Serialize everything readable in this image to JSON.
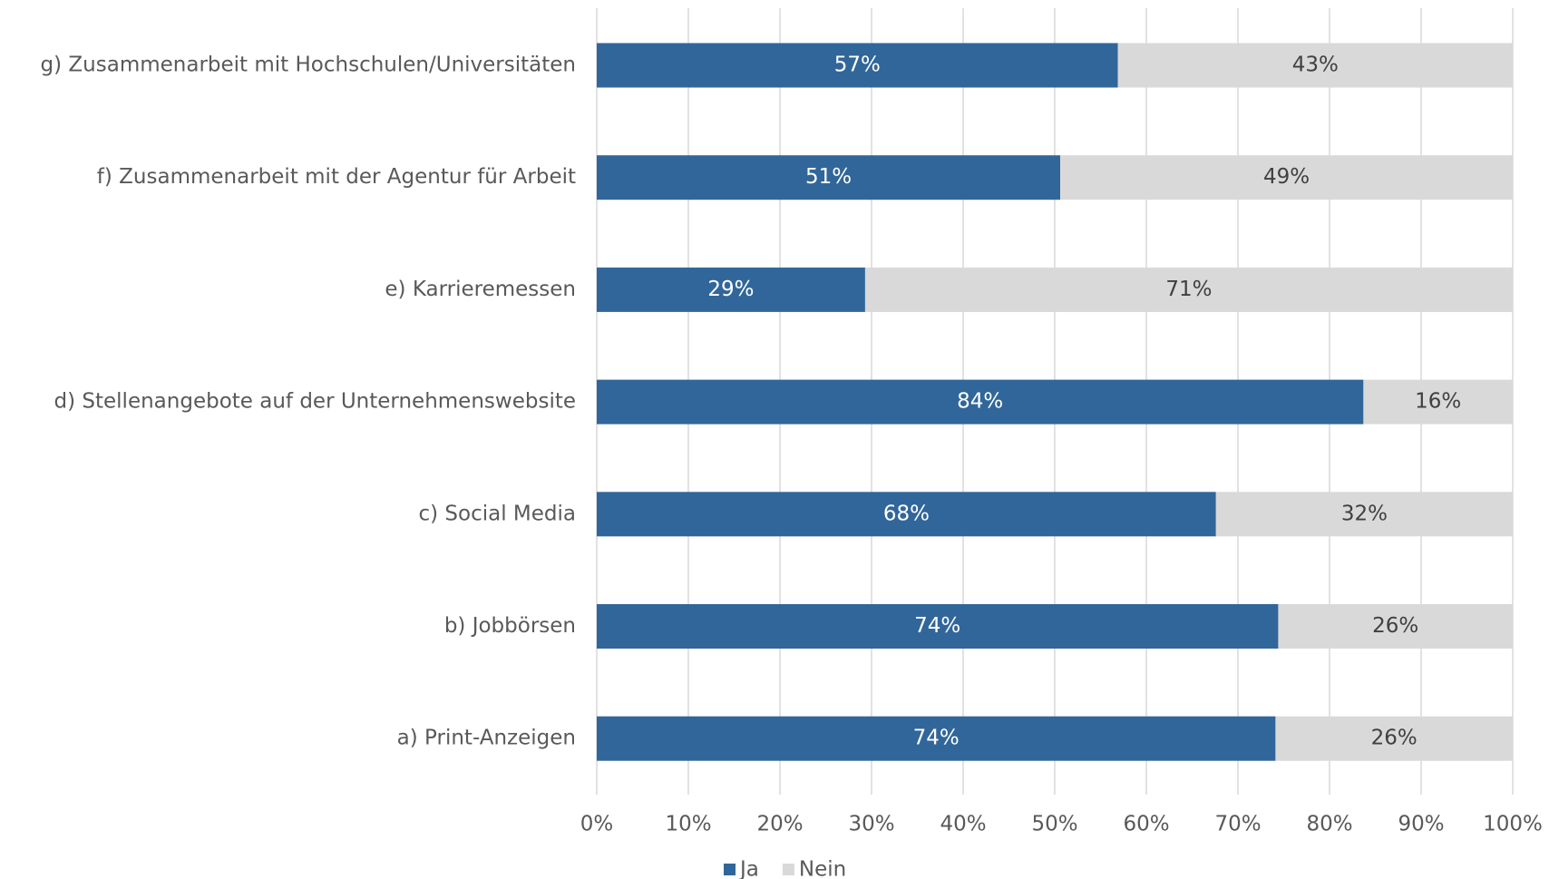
{
  "chart_data": {
    "type": "stacked_bar_horizontal",
    "categories": [
      "g) Zusammenarbeit mit Hochschulen/Universitäten",
      "f) Zusammenarbeit mit der Agentur für Arbeit",
      "e) Karrieremessen",
      "d) Stellenangebote auf der Unternehmenswebsite",
      "c) Social Media",
      "b) Jobbörsen",
      "a) Print-Anzeigen"
    ],
    "series": [
      {
        "name": "Ja",
        "color": "#31669a",
        "values": [
          56.9,
          50.6,
          29.3,
          83.7,
          67.6,
          74.4,
          74.1
        ],
        "value_labels": [
          "57%",
          "51%",
          "29%",
          "84%",
          "68%",
          "74%",
          "74%"
        ]
      },
      {
        "name": "Nein",
        "color": "#d9d9d9",
        "values": [
          43.1,
          49.4,
          70.7,
          16.3,
          32.4,
          25.6,
          25.9
        ],
        "value_labels": [
          "43%",
          "49%",
          "71%",
          "16%",
          "32%",
          "26%",
          "26%"
        ]
      }
    ],
    "xlim": [
      0,
      100
    ],
    "xticks": [
      {
        "value": 0,
        "label": "0%"
      },
      {
        "value": 10,
        "label": "10%"
      },
      {
        "value": 20,
        "label": "20%"
      },
      {
        "value": 30,
        "label": "30%"
      },
      {
        "value": 40,
        "label": "40%"
      },
      {
        "value": 50,
        "label": "50%"
      },
      {
        "value": 60,
        "label": "60%"
      },
      {
        "value": 70,
        "label": "70%"
      },
      {
        "value": 80,
        "label": "80%"
      },
      {
        "value": 90,
        "label": "90%"
      },
      {
        "value": 100,
        "label": "100%"
      }
    ],
    "grid": true,
    "legend": "bottom"
  }
}
